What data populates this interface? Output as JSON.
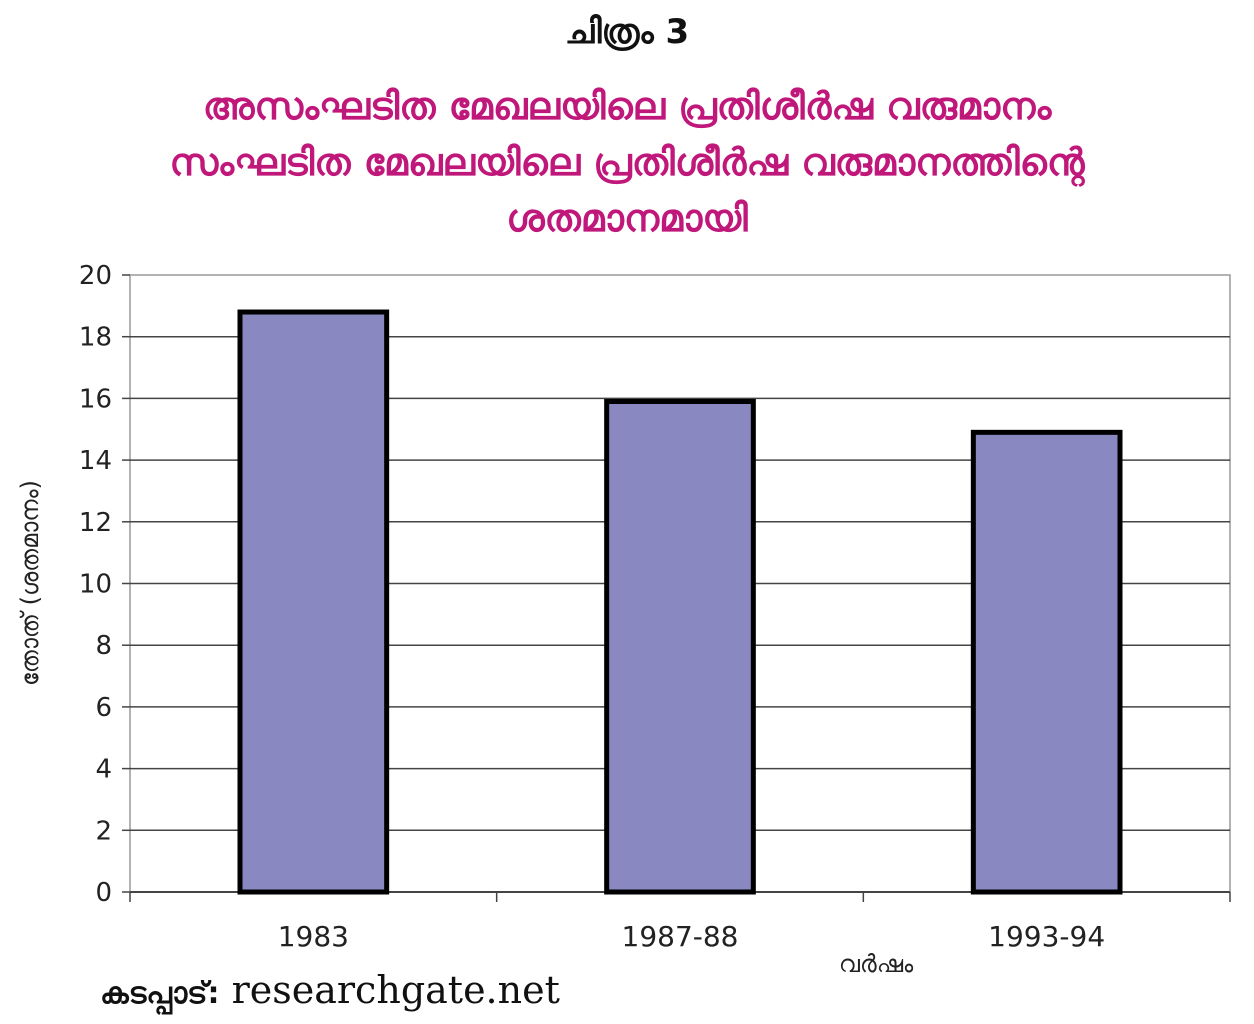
{
  "figure": {
    "number_label": "ചിത്രം 3"
  },
  "source": {
    "label": "കടപ്പാട്:",
    "value": "researchgate.net"
  },
  "chart_data": {
    "type": "bar",
    "title_lines": [
      "അസംഘടിത മേഖലയിലെ പ്രതിശീർഷ വരുമാനം",
      "സംഘടിത മേഖലയിലെ പ്രതിശീർഷ വരുമാനത്തിന്റെ",
      "ശതമാനമായി"
    ],
    "categories": [
      "1983",
      "1987-88",
      "1993-94"
    ],
    "values": [
      18.8,
      15.9,
      14.9
    ],
    "xlabel": "വർഷം",
    "ylabel": "തോത് (ശതമാനം)",
    "ylim": [
      0,
      20
    ],
    "yticks": [
      0,
      2,
      4,
      6,
      8,
      10,
      12,
      14,
      16,
      18,
      20
    ],
    "grid": true,
    "bar_color": "#8a88c0",
    "bar_edge_color": "#000000"
  }
}
